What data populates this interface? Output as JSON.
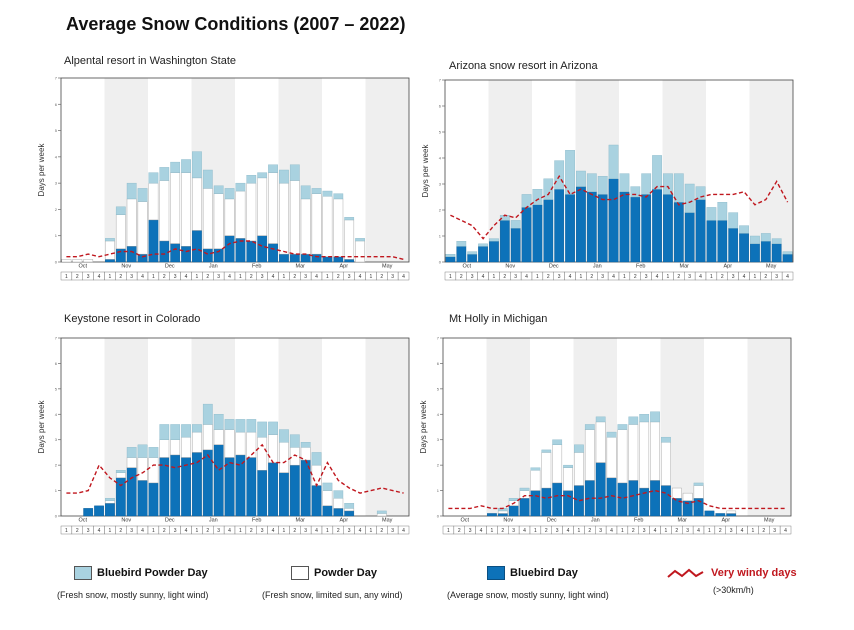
{
  "title": "Average Snow Conditions (2007 – 2022)",
  "colors": {
    "powder_bluebird": "#a9d2e0",
    "powder": "#ffffff",
    "bluebird": "#0d72b9",
    "windy": "#c0171e",
    "shade": "#efefef"
  },
  "legend": [
    {
      "label": "Bluebird Powder Day",
      "desc": "(Fresh snow, mostly sunny, light wind)",
      "icon": "light-blue-swatch"
    },
    {
      "label": "Powder Day",
      "desc": "(Fresh snow, limited sun, any wind)",
      "icon": "white-swatch"
    },
    {
      "label": "Bluebird Day",
      "desc": "(Average snow, mostly sunny, light wind)",
      "icon": "dark-blue-swatch"
    },
    {
      "label": "Very windy days",
      "desc": "(>30km/h)",
      "icon": "red-dashed-wave-icon"
    }
  ],
  "chart_data": [
    {
      "type": "bar",
      "stacked": true,
      "title": "Alpental resort in Washington State",
      "ylabel": "Days per week",
      "ylim": [
        0,
        7
      ],
      "months": [
        "Oct",
        "Nov",
        "Dec",
        "Jan",
        "Feb",
        "Mar",
        "Apr",
        "May"
      ],
      "week_labels": [
        "1",
        "2",
        "3",
        "4",
        "1",
        "2",
        "3",
        "4",
        "1",
        "2",
        "3",
        "4",
        "1",
        "2",
        "3",
        "4",
        "1",
        "2",
        "3",
        "4",
        "1",
        "2",
        "3",
        "4",
        "1",
        "2",
        "3",
        "4",
        "1",
        "2",
        "3",
        "4"
      ],
      "series": [
        {
          "name": "Bluebird Day",
          "values": [
            0,
            0,
            0,
            0,
            0.1,
            0.5,
            0.6,
            0.3,
            1.6,
            0.8,
            0.7,
            0.6,
            1.2,
            0.5,
            0.5,
            1.0,
            0.9,
            0.8,
            1.0,
            0.7,
            0.3,
            0.3,
            0.3,
            0.3,
            0.2,
            0.2,
            0.1,
            0,
            0,
            0,
            0,
            0
          ]
        },
        {
          "name": "Powder Day",
          "values": [
            0.1,
            0.1,
            0.1,
            0,
            0.7,
            1.3,
            1.8,
            2.0,
            1.4,
            2.3,
            2.7,
            2.8,
            2.0,
            2.3,
            2.1,
            1.4,
            1.8,
            2.2,
            2.2,
            2.7,
            2.7,
            2.8,
            2.1,
            2.3,
            2.3,
            2.2,
            1.5,
            0.8,
            0,
            0,
            0,
            0
          ]
        },
        {
          "name": "Bluebird Powder Day",
          "values": [
            0,
            0,
            0,
            0,
            0.1,
            0.3,
            0.6,
            0.5,
            0.4,
            0.5,
            0.4,
            0.5,
            1.0,
            0.7,
            0.3,
            0.4,
            0.3,
            0.3,
            0.2,
            0.3,
            0.5,
            0.6,
            0.5,
            0.2,
            0.2,
            0.2,
            0.1,
            0.1,
            0,
            0,
            0,
            0
          ]
        },
        {
          "name": "Very windy days",
          "values": [
            0.2,
            0.2,
            0.3,
            0.2,
            0.3,
            0.4,
            0.4,
            0.2,
            0.3,
            0.3,
            0.5,
            0.4,
            0.5,
            0.3,
            0.4,
            0.7,
            0.8,
            0.8,
            0.6,
            0.5,
            0.4,
            0.3,
            0.3,
            0.2,
            0.2,
            0.2,
            0.2,
            0.2,
            0.2,
            0.2,
            0.2,
            0.1
          ]
        }
      ]
    },
    {
      "type": "bar",
      "stacked": true,
      "title": "Arizona snow resort in Arizona",
      "ylabel": "Days per week",
      "ylim": [
        0,
        7
      ],
      "months": [
        "Oct",
        "Nov",
        "Dec",
        "Jan",
        "Feb",
        "Mar",
        "Apr",
        "May"
      ],
      "week_labels": [
        "1",
        "2",
        "3",
        "4",
        "1",
        "2",
        "3",
        "4",
        "1",
        "2",
        "3",
        "4",
        "1",
        "2",
        "3",
        "4",
        "1",
        "2",
        "3",
        "4",
        "1",
        "2",
        "3",
        "4",
        "1",
        "2",
        "3",
        "4",
        "1",
        "2",
        "3",
        "4"
      ],
      "series": [
        {
          "name": "Bluebird Day",
          "values": [
            0.2,
            0.6,
            0.3,
            0.6,
            0.8,
            1.6,
            1.3,
            2.1,
            2.2,
            2.4,
            2.8,
            2.6,
            2.9,
            2.7,
            2.6,
            3.2,
            2.7,
            2.5,
            2.6,
            2.8,
            2.6,
            2.3,
            1.9,
            2.4,
            1.6,
            1.6,
            1.3,
            1.1,
            0.7,
            0.8,
            0.7,
            0.3
          ]
        },
        {
          "name": "Powder Day",
          "values": [
            0,
            0,
            0,
            0,
            0,
            0,
            0,
            0,
            0,
            0,
            0,
            0,
            0,
            0,
            0,
            0,
            0,
            0,
            0,
            0,
            0,
            0,
            0,
            0,
            0,
            0,
            0,
            0,
            0,
            0,
            0,
            0
          ]
        },
        {
          "name": "Bluebird Powder Day",
          "values": [
            0.1,
            0.2,
            0.1,
            0.1,
            0.1,
            0.2,
            0.3,
            0.5,
            0.6,
            0.8,
            1.1,
            1.7,
            0.6,
            0.7,
            0.7,
            1.3,
            0.7,
            0.4,
            0.8,
            1.3,
            0.8,
            1.1,
            1.1,
            0.5,
            0.5,
            0.7,
            0.6,
            0.3,
            0.3,
            0.3,
            0.2,
            0.1
          ]
        },
        {
          "name": "Very windy days",
          "values": [
            1.8,
            1.6,
            1.4,
            0.9,
            1.4,
            1.8,
            1.7,
            2.1,
            2.4,
            2.6,
            3.3,
            2.6,
            2.8,
            2.6,
            2.4,
            2.4,
            2.6,
            2.6,
            2.5,
            2.9,
            2.9,
            2.2,
            2.3,
            2.5,
            2.6,
            2.6,
            2.6,
            2.7,
            2.2,
            2.4,
            3.1,
            2.3
          ]
        }
      ]
    },
    {
      "type": "bar",
      "stacked": true,
      "title": "Keystone resort in Colorado",
      "ylabel": "Days per week",
      "ylim": [
        0,
        7
      ],
      "months": [
        "Oct",
        "Nov",
        "Dec",
        "Jan",
        "Feb",
        "Mar",
        "Apr",
        "May"
      ],
      "week_labels": [
        "1",
        "2",
        "3",
        "4",
        "1",
        "2",
        "3",
        "4",
        "1",
        "2",
        "3",
        "4",
        "1",
        "2",
        "3",
        "4",
        "1",
        "2",
        "3",
        "4",
        "1",
        "2",
        "3",
        "4",
        "1",
        "2",
        "3",
        "4",
        "1",
        "2",
        "3",
        "4"
      ],
      "series": [
        {
          "name": "Bluebird Day",
          "values": [
            0,
            0,
            0.3,
            0.4,
            0.5,
            1.5,
            1.9,
            1.4,
            1.3,
            2.3,
            2.4,
            2.3,
            2.5,
            2.6,
            2.8,
            2.3,
            2.4,
            2.3,
            1.8,
            2.1,
            1.7,
            2.0,
            2.2,
            1.2,
            0.4,
            0.3,
            0.2,
            0,
            0,
            0,
            0,
            0
          ]
        },
        {
          "name": "Powder Day",
          "values": [
            0,
            0,
            0,
            0,
            0.1,
            0.2,
            0.4,
            0.9,
            1.0,
            0.7,
            0.6,
            0.8,
            0.8,
            1.0,
            0.6,
            1.1,
            0.9,
            1.0,
            1.3,
            1.1,
            1.2,
            0.7,
            0.5,
            0.8,
            0.6,
            0.4,
            0.1,
            0,
            0,
            0.1,
            0,
            0
          ]
        },
        {
          "name": "Bluebird Powder Day",
          "values": [
            0,
            0,
            0,
            0,
            0.1,
            0.1,
            0.4,
            0.5,
            0.4,
            0.6,
            0.6,
            0.5,
            0.3,
            0.8,
            0.6,
            0.4,
            0.5,
            0.5,
            0.6,
            0.5,
            0.5,
            0.5,
            0.2,
            0.5,
            0.3,
            0.3,
            0.2,
            0,
            0,
            0.1,
            0,
            0
          ]
        },
        {
          "name": "Very windy days",
          "values": [
            0.9,
            0.9,
            1.0,
            2.0,
            1.5,
            1.2,
            1.5,
            1.7,
            2.0,
            2.0,
            1.9,
            2.0,
            2.1,
            2.4,
            1.8,
            2.1,
            2.0,
            2.4,
            2.8,
            2.1,
            2.1,
            2.4,
            2.2,
            1.2,
            2.1,
            1.4,
            1.1,
            0.9,
            1.0,
            1.1,
            1.0,
            0.9
          ]
        }
      ]
    },
    {
      "type": "bar",
      "stacked": true,
      "title": "Mt Holly in Michigan",
      "ylabel": "Days per week",
      "ylim": [
        0,
        7
      ],
      "months": [
        "Oct",
        "Nov",
        "Dec",
        "Jan",
        "Feb",
        "Mar",
        "Apr",
        "May"
      ],
      "week_labels": [
        "1",
        "2",
        "3",
        "4",
        "1",
        "2",
        "3",
        "4",
        "1",
        "2",
        "3",
        "4",
        "1",
        "2",
        "3",
        "4",
        "1",
        "2",
        "3",
        "4",
        "1",
        "2",
        "3",
        "4",
        "1",
        "2",
        "3",
        "4",
        "1",
        "2",
        "3",
        "4"
      ],
      "series": [
        {
          "name": "Bluebird Day",
          "values": [
            0,
            0,
            0,
            0,
            0.1,
            0.1,
            0.4,
            0.7,
            1.0,
            1.1,
            1.3,
            1.0,
            1.2,
            1.4,
            2.1,
            1.5,
            1.3,
            1.4,
            1.1,
            1.4,
            1.2,
            0.7,
            0.6,
            0.7,
            0.2,
            0.1,
            0.1,
            0,
            0,
            0,
            0,
            0
          ]
        },
        {
          "name": "Powder Day",
          "values": [
            0,
            0,
            0,
            0,
            0,
            0.1,
            0.2,
            0.3,
            0.8,
            1.4,
            1.5,
            0.9,
            1.3,
            2.0,
            1.6,
            1.6,
            2.1,
            2.2,
            2.6,
            2.3,
            1.7,
            0.4,
            0.3,
            0.5,
            0,
            0,
            0.1,
            0,
            0,
            0,
            0,
            0
          ]
        },
        {
          "name": "Bluebird Powder Day",
          "values": [
            0,
            0,
            0,
            0,
            0,
            0.1,
            0.1,
            0.1,
            0.1,
            0.1,
            0.2,
            0.1,
            0.3,
            0.2,
            0.2,
            0.2,
            0.2,
            0.3,
            0.3,
            0.4,
            0.2,
            0,
            0,
            0.1,
            0,
            0,
            0,
            0,
            0,
            0,
            0,
            0
          ]
        },
        {
          "name": "Very windy days",
          "values": [
            0.3,
            0.3,
            0.3,
            0.4,
            0.3,
            0.3,
            0.5,
            0.8,
            0.8,
            0.7,
            0.8,
            0.8,
            0.6,
            0.7,
            0.7,
            0.8,
            0.7,
            0.8,
            0.9,
            1.0,
            0.9,
            0.6,
            0.5,
            0.6,
            0.4,
            0.3,
            0.3,
            0.3,
            0.3,
            0.3,
            0.3,
            0.3
          ]
        }
      ]
    }
  ]
}
